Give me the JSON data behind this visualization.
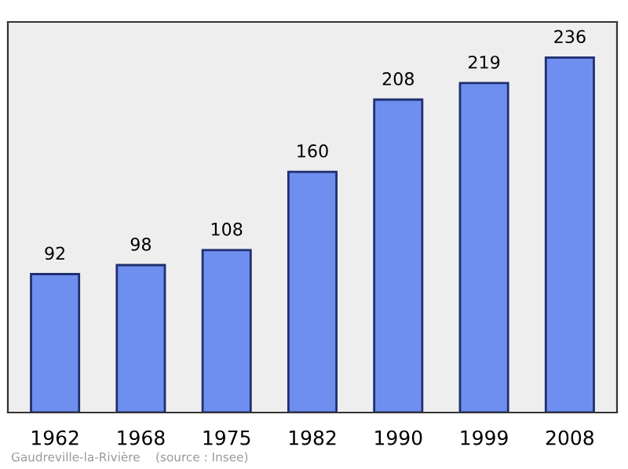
{
  "chart_data": {
    "type": "bar",
    "categories": [
      "1962",
      "1968",
      "1975",
      "1982",
      "1990",
      "1999",
      "2008"
    ],
    "values": [
      92,
      98,
      108,
      160,
      208,
      219,
      236
    ],
    "color": "#6f8ff0",
    "data_labels": true,
    "grid": false,
    "annotations": [
      "Gaudreville-la-Rivière    (source : Insee)"
    ]
  }
}
